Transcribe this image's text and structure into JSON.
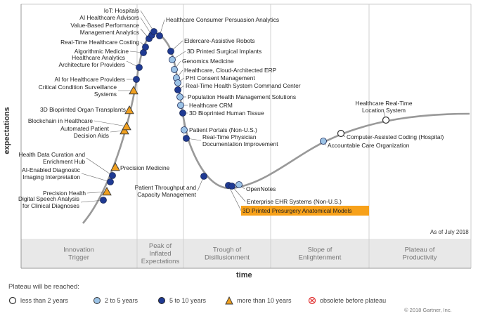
{
  "axes": {
    "y_label": "expectations",
    "x_label": "time"
  },
  "as_of": "As of July 2018",
  "copyright": "© 2018 Gartner, Inc.",
  "colors": {
    "less_than_2": "#ffffff",
    "two_to_5": "#9cc3e6",
    "five_to_10": "#1f3a93",
    "more_than_10": "#f0a020",
    "obsolete": "#e03030",
    "highlight_bg": "#f7a11a",
    "highlight_text": "#d4380d"
  },
  "phases": [
    {
      "lines": [
        "Innovation",
        "Trigger"
      ]
    },
    {
      "lines": [
        "Peak of",
        "Inflated",
        "Expectations"
      ]
    },
    {
      "lines": [
        "Trough of",
        "Disillusionment"
      ]
    },
    {
      "lines": [
        "Slope of",
        "Enlightenment"
      ]
    },
    {
      "lines": [
        "Plateau of",
        "Productivity"
      ]
    }
  ],
  "legend": {
    "title": "Plateau will be reached:",
    "items": [
      {
        "key": "lt2",
        "label": "less than 2 years"
      },
      {
        "key": "2to5",
        "label": "2 to 5 years"
      },
      {
        "key": "5to10",
        "label": "5 to 10 years"
      },
      {
        "key": "gt10",
        "label": "more than 10 years"
      },
      {
        "key": "obs",
        "label": "obsolete before plateau"
      }
    ]
  },
  "technologies": [
    {
      "name": "Digital Speech Analysis for Clinical Diagnoses",
      "lines": [
        "Digital Speech Analysis",
        "for Clinical Diagnoses"
      ],
      "plateau": "5to10"
    },
    {
      "name": "Precision Health",
      "lines": [
        "Precision Health"
      ],
      "plateau": "gt10"
    },
    {
      "name": "AI-Enabled Diagnostic Imaging Interpretation",
      "lines": [
        "AI-Enabled Diagnostic",
        "Imaging Interpretation"
      ],
      "plateau": "5to10"
    },
    {
      "name": "Health Data Curation and Enrichment Hub",
      "lines": [
        "Health Data Curation and",
        "Enrichment Hub"
      ],
      "plateau": "5to10"
    },
    {
      "name": "Precision Medicine",
      "lines": [
        "Precision Medicine"
      ],
      "plateau": "gt10"
    },
    {
      "name": "Automated Patient Decision Aids",
      "lines": [
        "Automated Patient",
        "Decision Aids"
      ],
      "plateau": "gt10"
    },
    {
      "name": "Blockchain in Healthcare",
      "lines": [
        "Blockchain in Healthcare"
      ],
      "plateau": "gt10"
    },
    {
      "name": "3D Bioprinted Organ Transplants",
      "lines": [
        "3D Bioprinted Organ Transplants"
      ],
      "plateau": "gt10"
    },
    {
      "name": "Critical Condition Surveillance Systems",
      "lines": [
        "Critical Condition Surveillance",
        "Systems"
      ],
      "plateau": "gt10"
    },
    {
      "name": "AI for Healthcare Providers",
      "lines": [
        "AI for Healthcare Providers"
      ],
      "plateau": "5to10"
    },
    {
      "name": "Healthcare Analytics Architecture for Providers",
      "lines": [
        "Healthcare Analytics",
        "Architecture for Providers"
      ],
      "plateau": "5to10"
    },
    {
      "name": "Algorithmic Medicine",
      "lines": [
        "Algorithmic Medicine"
      ],
      "plateau": "5to10"
    },
    {
      "name": "Real-Time Healthcare Costing",
      "lines": [
        "Real-Time Healthcare Costing"
      ],
      "plateau": "5to10"
    },
    {
      "name": "Value-Based Performance Management Analytics",
      "lines": [
        "Value-Based Performance",
        "Management Analytics"
      ],
      "plateau": "5to10"
    },
    {
      "name": "AI Healthcare Advisors",
      "lines": [
        "AI Healthcare Advisors"
      ],
      "plateau": "5to10"
    },
    {
      "name": "IoT: Hospitals",
      "lines": [
        "IoT: Hospitals"
      ],
      "plateau": "5to10"
    },
    {
      "name": "Healthcare Consumer Persuasion Analytics",
      "lines": [
        "Healthcare Consumer Persuasion Analytics"
      ],
      "plateau": "5to10"
    },
    {
      "name": "Eldercare-Assistive Robots",
      "lines": [
        "Eldercare-Assistive Robots"
      ],
      "plateau": "5to10"
    },
    {
      "name": "3D Printed Surgical Implants",
      "lines": [
        "3D Printed Surgical Implants"
      ],
      "plateau": "2to5"
    },
    {
      "name": "Genomics Medicine",
      "lines": [
        "Genomics Medicine"
      ],
      "plateau": "2to5"
    },
    {
      "name": "Healthcare, Cloud-Architected ERP",
      "lines": [
        "Healthcare, Cloud-Architected ERP"
      ],
      "plateau": "2to5"
    },
    {
      "name": "PHI Consent Management",
      "lines": [
        "PHI Consent Management"
      ],
      "plateau": "2to5"
    },
    {
      "name": "Real-Time Health System Command Center",
      "lines": [
        "Real-Time Health System Command Center"
      ],
      "plateau": "5to10"
    },
    {
      "name": "Population Health Management Solutions",
      "lines": [
        "Population Health Management Solutions"
      ],
      "plateau": "2to5"
    },
    {
      "name": "Healthcare CRM",
      "lines": [
        "Healthcare CRM"
      ],
      "plateau": "2to5"
    },
    {
      "name": "3D Bioprinted Human Tissue",
      "lines": [
        "3D Bioprinted Human Tissue"
      ],
      "plateau": "5to10"
    },
    {
      "name": "Patient Portals (Non-U.S.)",
      "lines": [
        "Patient Portals (Non-U.S.)"
      ],
      "plateau": "2to5"
    },
    {
      "name": "Real-Time Physician Documentation Improvement",
      "lines": [
        "Real-Time Physician",
        "Documentation Improvement"
      ],
      "plateau": "5to10"
    },
    {
      "name": "Patient Throughput and Capacity Management",
      "lines": [
        "Patient Throughput and",
        "Capacity Management"
      ],
      "plateau": "5to10"
    },
    {
      "name": "3D Printed Presurgery Anatomical Models",
      "lines": [
        "3D Printed Presurgery Anatomical Models"
      ],
      "plateau": "5to10",
      "highlight": true
    },
    {
      "name": "Enterprise EHR Systems (Non-U.S.)",
      "lines": [
        "Enterprise EHR Systems (Non-U.S.)"
      ],
      "plateau": "5to10"
    },
    {
      "name": "OpenNotes",
      "lines": [
        "OpenNotes"
      ],
      "plateau": "2to5"
    },
    {
      "name": "Accountable Care Organization",
      "lines": [
        "Accountable Care Organization"
      ],
      "plateau": "2to5"
    },
    {
      "name": "Computer-Assisted Coding (Hospital)",
      "lines": [
        "Computer-Assisted Coding (Hospital)"
      ],
      "plateau": "lt2"
    },
    {
      "name": "Healthcare Real-Time Location System",
      "lines": [
        "Healthcare Real-Time",
        "Location System"
      ],
      "plateau": "lt2"
    }
  ]
}
